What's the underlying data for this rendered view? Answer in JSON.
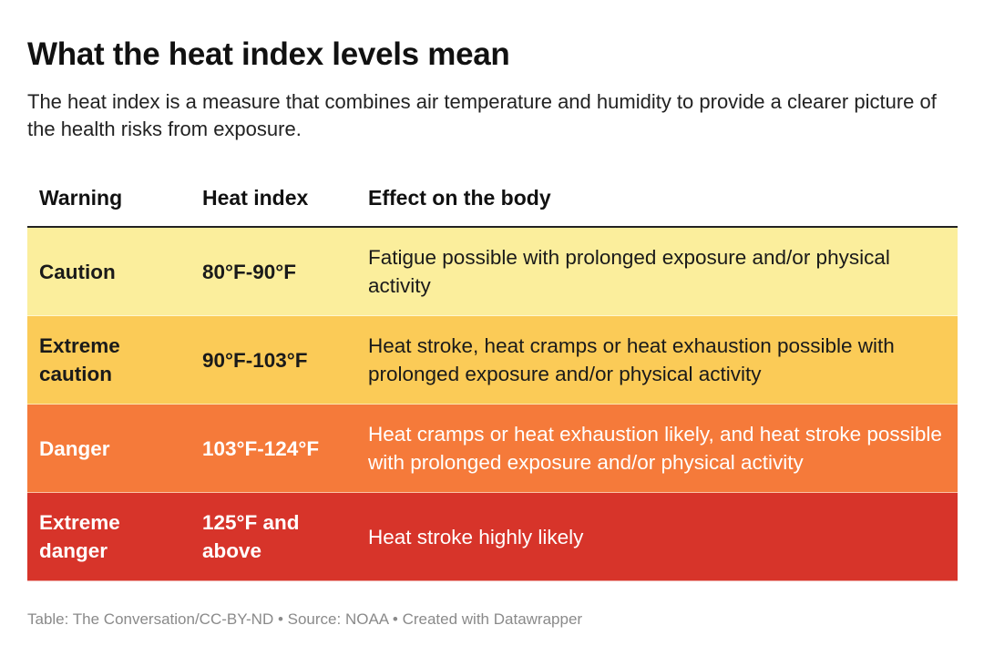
{
  "title": "What the heat index levels mean",
  "subtitle": "The heat index is a measure that combines air temperature and humidity to provide a clearer picture of the health risks from exposure.",
  "chart_data": {
    "type": "table",
    "columns": [
      "Warning",
      "Heat index",
      "Effect on the body"
    ],
    "rows": [
      {
        "warning": "Caution",
        "heat_index": "80°F-90°F",
        "effect": "Fatigue possible with prolonged exposure and/or physical activity",
        "bg_color": "#fbee9c",
        "text_color": "#1a1a1a"
      },
      {
        "warning": "Extreme caution",
        "heat_index": "90°F-103°F",
        "effect": "Heat stroke, heat cramps or heat exhaustion possible with prolonged exposure and/or physical activity",
        "bg_color": "#fbcb57",
        "text_color": "#1a1a1a"
      },
      {
        "warning": "Danger",
        "heat_index": "103°F-124°F",
        "effect": "Heat cramps or heat exhaustion likely, and heat stroke possible with prolonged exposure and/or physical activity",
        "bg_color": "#f57a3a",
        "text_color": "#ffffff"
      },
      {
        "warning": "Extreme danger",
        "heat_index": "125°F and above",
        "effect": "Heat stroke highly likely",
        "bg_color": "#d7342a",
        "text_color": "#ffffff"
      }
    ]
  },
  "footer": "Table: The Conversation/CC-BY-ND • Source: NOAA • Created with Datawrapper"
}
